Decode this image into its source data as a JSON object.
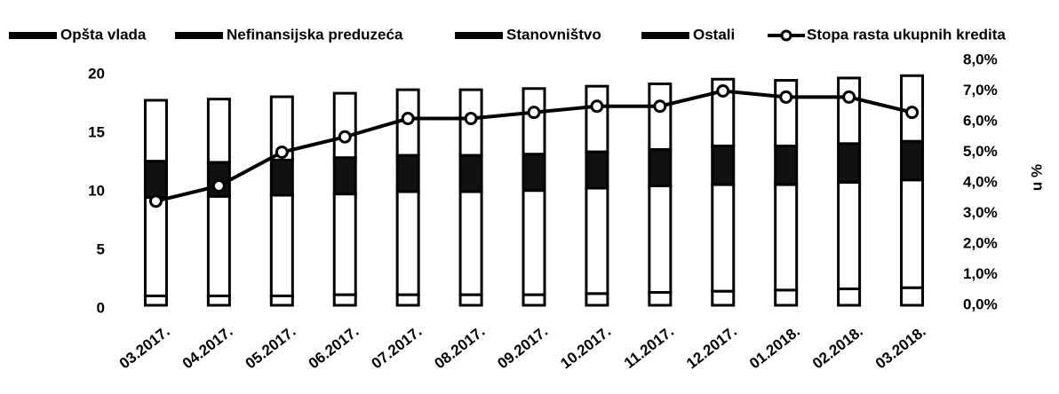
{
  "chart_data": {
    "type": "bar",
    "categories": [
      "03.2017.",
      "04.2017.",
      "05.2017.",
      "06.2017.",
      "07.2017.",
      "08.2017.",
      "09.2017.",
      "10.2017.",
      "11.2017.",
      "12.2017.",
      "01.2018.",
      "02.2018.",
      "03.2018."
    ],
    "series": [
      {
        "name": "Opšta vlada",
        "color": "#ffffff",
        "values": [
          0.8,
          0.8,
          0.8,
          0.9,
          0.9,
          0.9,
          0.9,
          1.0,
          1.1,
          1.2,
          1.3,
          1.4,
          1.5
        ]
      },
      {
        "name": "Nefinansijska preduzeća",
        "color": "#ffffff",
        "values": [
          8.4,
          8.5,
          8.6,
          8.6,
          8.8,
          8.8,
          8.9,
          9.0,
          9.1,
          9.1,
          9.0,
          9.1,
          9.2
        ]
      },
      {
        "name": "Stanovništvo",
        "color": "#111111",
        "values": [
          3.1,
          2.9,
          3.0,
          3.1,
          3.1,
          3.1,
          3.1,
          3.1,
          3.1,
          3.3,
          3.3,
          3.3,
          3.3
        ]
      },
      {
        "name": "Ostali",
        "color": "#ffffff",
        "values": [
          5.2,
          5.4,
          5.4,
          5.5,
          5.6,
          5.6,
          5.6,
          5.6,
          5.6,
          5.7,
          5.6,
          5.6,
          5.6
        ]
      },
      {
        "name": "Stopa rasta ukupnih kredita",
        "color": "#000000",
        "type": "line",
        "axis": "y2",
        "values": [
          3.4,
          3.9,
          5.0,
          5.5,
          6.1,
          6.1,
          6.3,
          6.5,
          6.5,
          7.0,
          6.8,
          6.8,
          6.3
        ]
      }
    ],
    "stacked": true,
    "ylim": [
      0,
      20
    ],
    "yticks": [
      0,
      5,
      10,
      15,
      20
    ],
    "y2lim": [
      0,
      8
    ],
    "y2ticks": [
      {
        "value": 0,
        "label": "0,0%"
      },
      {
        "value": 1,
        "label": "1,0%"
      },
      {
        "value": 2,
        "label": "2,0%"
      },
      {
        "value": 3,
        "label": "3,0%"
      },
      {
        "value": 4,
        "label": "4,0%"
      },
      {
        "value": 5,
        "label": "5,0%"
      },
      {
        "value": 6,
        "label": "6,0%"
      },
      {
        "value": 7,
        "label": "7,0%"
      },
      {
        "value": 8,
        "label": "8,0%"
      }
    ],
    "y2label": "u %",
    "legend": "top"
  }
}
